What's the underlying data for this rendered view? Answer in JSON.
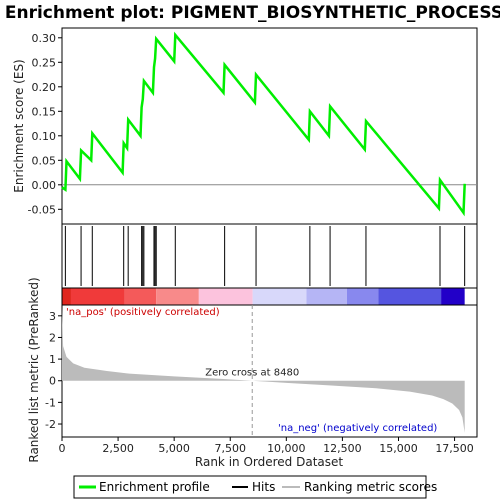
{
  "chart_data": {
    "type": "line",
    "title": "Enrichment plot: PIGMENT_BIOSYNTHETIC_PROCESS",
    "xlabel": "Rank in Ordered Dataset",
    "ylabel_top": "Enrichment score (ES)",
    "ylabel_bottom": "Ranked list metric (PreRanked)",
    "x_range": [
      0,
      18500
    ],
    "es_range": [
      -0.08,
      0.32
    ],
    "metric_range": [
      -2.6,
      3.5
    ],
    "x_ticks": [
      0,
      2500,
      5000,
      7500,
      10000,
      12500,
      15000,
      17500
    ],
    "x_tick_labels": [
      "0",
      "2,500",
      "5,000",
      "7,500",
      "10,000",
      "12,500",
      "15,000",
      "17,500"
    ],
    "es_ticks": [
      -0.05,
      0.0,
      0.05,
      0.1,
      0.15,
      0.2,
      0.25,
      0.3
    ],
    "es_tick_labels": [
      "-0.05",
      "0.00",
      "0.05",
      "0.10",
      "0.15",
      "0.20",
      "0.25",
      "0.30"
    ],
    "metric_ticks": [
      -2,
      -1,
      0,
      1,
      2,
      3
    ],
    "metric_tick_labels": [
      "-2",
      "-1",
      "0",
      "1",
      "2",
      "3"
    ],
    "enrichment_profile": {
      "x": [
        0,
        150,
        200,
        800,
        850,
        1300,
        1350,
        2700,
        2750,
        2900,
        2950,
        3500,
        3550,
        3600,
        3650,
        4050,
        4100,
        4150,
        4200,
        5000,
        5050,
        7200,
        7250,
        8600,
        8650,
        11000,
        11050,
        11900,
        11950,
        13500,
        13550,
        16800,
        16850,
        17900,
        17950
      ],
      "y": [
        -0.005,
        -0.01,
        0.048,
        0.012,
        0.07,
        0.05,
        0.105,
        0.025,
        0.085,
        0.075,
        0.133,
        0.1,
        0.158,
        0.175,
        0.212,
        0.188,
        0.24,
        0.258,
        0.298,
        0.252,
        0.306,
        0.188,
        0.245,
        0.168,
        0.225,
        0.092,
        0.15,
        0.1,
        0.16,
        0.072,
        0.13,
        -0.048,
        0.01,
        -0.057,
        0.002
      ]
    },
    "hits": [
      150,
      850,
      1350,
      2750,
      2950,
      3550,
      3600,
      3650,
      4100,
      4150,
      4200,
      5050,
      7250,
      8650,
      11050,
      11950,
      13550,
      16850,
      17950
    ],
    "ranked_metric": {
      "x": [
        0,
        50,
        200,
        500,
        1000,
        2000,
        3000,
        5000,
        7000,
        8480,
        10000,
        12000,
        14000,
        15500,
        16500,
        17000,
        17400,
        17700,
        17850,
        17950
      ],
      "y": [
        3.4,
        1.6,
        1.1,
        0.8,
        0.6,
        0.45,
        0.33,
        0.2,
        0.09,
        0.0,
        -0.1,
        -0.22,
        -0.35,
        -0.5,
        -0.68,
        -0.85,
        -1.05,
        -1.35,
        -1.7,
        -2.4
      ]
    },
    "zero_cross": 8480,
    "zero_cross_label": "Zero cross at 8480",
    "pos_label": "'na_pos' (positively correlated)",
    "neg_label": "'na_neg' (negatively correlated)",
    "heatmap_bands": [
      {
        "from": 0,
        "to": 400,
        "color": "#e0261e"
      },
      {
        "from": 400,
        "to": 2800,
        "color": "#f03a3a"
      },
      {
        "from": 2800,
        "to": 4200,
        "color": "#f45a5a"
      },
      {
        "from": 4200,
        "to": 6100,
        "color": "#f88a8a"
      },
      {
        "from": 6100,
        "to": 8500,
        "color": "#fcc3dd"
      },
      {
        "from": 8500,
        "to": 10900,
        "color": "#d8d8fa"
      },
      {
        "from": 10900,
        "to": 12700,
        "color": "#b5b5f5"
      },
      {
        "from": 12700,
        "to": 14100,
        "color": "#8888ee"
      },
      {
        "from": 14100,
        "to": 16900,
        "color": "#5555e0"
      },
      {
        "from": 16900,
        "to": 17950,
        "color": "#2200c8"
      }
    ],
    "legend": {
      "placement": "bottom",
      "items": [
        "Enrichment profile",
        "Hits",
        "Ranking metric scores"
      ]
    },
    "colors": {
      "profile": "#00ee00",
      "hits": "#000000",
      "metric_fill": "#bbbbbb",
      "pos_text": "#cc0000",
      "neg_text": "#0000cc"
    }
  }
}
